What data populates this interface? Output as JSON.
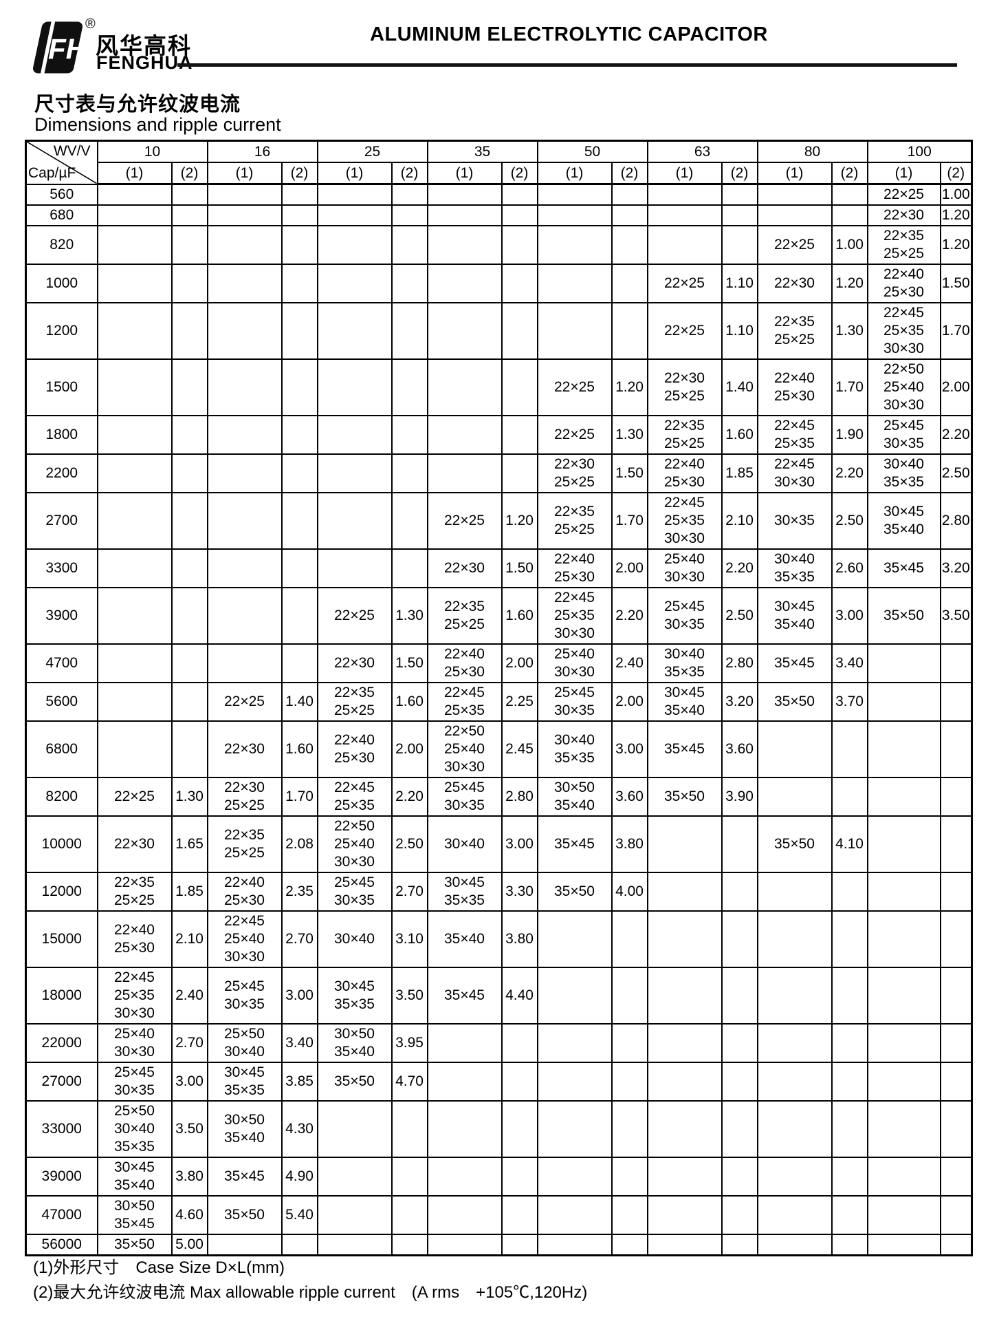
{
  "page": {
    "brand": {
      "logo_cn": "风华高科",
      "logo_en": "FENGHUA",
      "registered_mark": "®"
    },
    "doc_title": "ALUMINUM ELECTROLYTIC CAPACITOR",
    "section": {
      "title_cn": "尺寸表与允许纹波电流",
      "title_en": "Dimensions and ripple current"
    }
  },
  "table": {
    "corner": {
      "top": "WV/V",
      "bottom": "Cap/µF"
    },
    "voltages": [
      "10",
      "16",
      "25",
      "35",
      "50",
      "63",
      "80",
      "100"
    ],
    "sub_headers": [
      "(1)",
      "(2)"
    ],
    "rows": [
      {
        "cap": "560",
        "cells": {
          "100": [
            "22×25",
            "1.00"
          ]
        }
      },
      {
        "cap": "680",
        "cells": {
          "100": [
            "22×30",
            "1.20"
          ]
        }
      },
      {
        "cap": "820",
        "cells": {
          "80": [
            "22×25",
            "1.00"
          ],
          "100": [
            "22×35\n25×25",
            "1.20"
          ]
        }
      },
      {
        "cap": "1000",
        "cells": {
          "63": [
            "22×25",
            "1.10"
          ],
          "80": [
            "22×30",
            "1.20"
          ],
          "100": [
            "22×40\n25×30",
            "1.50"
          ]
        }
      },
      {
        "cap": "1200",
        "cells": {
          "63": [
            "22×25",
            "1.10"
          ],
          "80": [
            "22×35\n25×25",
            "1.30"
          ],
          "100": [
            "22×45\n25×35\n30×30",
            "1.70"
          ]
        }
      },
      {
        "cap": "1500",
        "cells": {
          "50": [
            "22×25",
            "1.20"
          ],
          "63": [
            "22×30\n25×25",
            "1.40"
          ],
          "80": [
            "22×40\n25×30",
            "1.70"
          ],
          "100": [
            "22×50\n25×40\n30×30",
            "2.00"
          ]
        }
      },
      {
        "cap": "1800",
        "cells": {
          "50": [
            "22×25",
            "1.30"
          ],
          "63": [
            "22×35\n25×25",
            "1.60"
          ],
          "80": [
            "22×45\n25×35",
            "1.90"
          ],
          "100": [
            "25×45\n30×35",
            "2.20"
          ]
        }
      },
      {
        "cap": "2200",
        "cells": {
          "50": [
            "22×30\n25×25",
            "1.50"
          ],
          "63": [
            "22×40\n25×30",
            "1.85"
          ],
          "80": [
            "22×45\n30×30",
            "2.20"
          ],
          "100": [
            "30×40\n35×35",
            "2.50"
          ]
        }
      },
      {
        "cap": "2700",
        "cells": {
          "35": [
            "22×25",
            "1.20"
          ],
          "50": [
            "22×35\n25×25",
            "1.70"
          ],
          "63": [
            "22×45\n25×35\n30×30",
            "2.10"
          ],
          "80": [
            "30×35",
            "2.50"
          ],
          "100": [
            "30×45\n35×40",
            "2.80"
          ]
        }
      },
      {
        "cap": "3300",
        "cells": {
          "35": [
            "22×30",
            "1.50"
          ],
          "50": [
            "22×40\n25×30",
            "2.00"
          ],
          "63": [
            "25×40\n30×30",
            "2.20"
          ],
          "80": [
            "30×40\n35×35",
            "2.60"
          ],
          "100": [
            "35×45",
            "3.20"
          ]
        }
      },
      {
        "cap": "3900",
        "cells": {
          "25": [
            "22×25",
            "1.30"
          ],
          "35": [
            "22×35\n25×25",
            "1.60"
          ],
          "50": [
            "22×45\n25×35\n30×30",
            "2.20"
          ],
          "63": [
            "25×45\n30×35",
            "2.50"
          ],
          "80": [
            "30×45\n35×40",
            "3.00"
          ],
          "100": [
            "35×50",
            "3.50"
          ]
        }
      },
      {
        "cap": "4700",
        "cells": {
          "25": [
            "22×30",
            "1.50"
          ],
          "35": [
            "22×40\n25×30",
            "2.00"
          ],
          "50": [
            "25×40\n30×30",
            "2.40"
          ],
          "63": [
            "30×40\n35×35",
            "2.80"
          ],
          "80": [
            "35×45",
            "3.40"
          ]
        }
      },
      {
        "cap": "5600",
        "cells": {
          "16": [
            "22×25",
            "1.40"
          ],
          "25": [
            "22×35\n25×25",
            "1.60"
          ],
          "35": [
            "22×45\n25×35",
            "2.25"
          ],
          "50": [
            "25×45\n30×35",
            "2.00"
          ],
          "63": [
            "30×45\n35×40",
            "3.20"
          ],
          "80": [
            "35×50",
            "3.70"
          ]
        }
      },
      {
        "cap": "6800",
        "cells": {
          "16": [
            "22×30",
            "1.60"
          ],
          "25": [
            "22×40\n25×30",
            "2.00"
          ],
          "35": [
            "22×50\n25×40\n30×30",
            "2.45"
          ],
          "50": [
            "30×40\n35×35",
            "3.00"
          ],
          "63": [
            "35×45",
            "3.60"
          ]
        }
      },
      {
        "cap": "8200",
        "cells": {
          "10": [
            "22×25",
            "1.30"
          ],
          "16": [
            "22×30\n25×25",
            "1.70"
          ],
          "25": [
            "22×45\n25×35",
            "2.20"
          ],
          "35": [
            "25×45\n30×35",
            "2.80"
          ],
          "50": [
            "30×50\n35×40",
            "3.60"
          ],
          "63": [
            "35×50",
            "3.90"
          ]
        }
      },
      {
        "cap": "10000",
        "cells": {
          "10": [
            "22×30",
            "1.65"
          ],
          "16": [
            "22×35\n25×25",
            "2.08"
          ],
          "25": [
            "22×50\n25×40\n30×30",
            "2.50"
          ],
          "35": [
            "30×40",
            "3.00"
          ],
          "50": [
            "35×45",
            "3.80"
          ],
          "80": [
            "35×50",
            "4.10"
          ]
        }
      },
      {
        "cap": "12000",
        "cells": {
          "10": [
            "22×35\n25×25",
            "1.85"
          ],
          "16": [
            "22×40\n25×30",
            "2.35"
          ],
          "25": [
            "25×45\n30×35",
            "2.70"
          ],
          "35": [
            "30×45\n35×35",
            "3.30"
          ],
          "50": [
            "35×50",
            "4.00"
          ]
        }
      },
      {
        "cap": "15000",
        "cells": {
          "10": [
            "22×40\n25×30",
            "2.10"
          ],
          "16": [
            "22×45\n25×40\n30×30",
            "2.70"
          ],
          "25": [
            "30×40",
            "3.10"
          ],
          "35": [
            "35×40",
            "3.80"
          ]
        }
      },
      {
        "cap": "18000",
        "cells": {
          "10": [
            "22×45\n25×35\n30×30",
            "2.40"
          ],
          "16": [
            "25×45\n30×35",
            "3.00"
          ],
          "25": [
            "30×45\n35×35",
            "3.50"
          ],
          "35": [
            "35×45",
            "4.40"
          ]
        }
      },
      {
        "cap": "22000",
        "cells": {
          "10": [
            "25×40\n30×30",
            "2.70"
          ],
          "16": [
            "25×50\n30×40",
            "3.40"
          ],
          "25": [
            "30×50\n35×40",
            "3.95"
          ]
        }
      },
      {
        "cap": "27000",
        "cells": {
          "10": [
            "25×45\n30×35",
            "3.00"
          ],
          "16": [
            "30×45\n35×35",
            "3.85"
          ],
          "25": [
            "35×50",
            "4.70"
          ]
        }
      },
      {
        "cap": "33000",
        "cells": {
          "10": [
            "25×50\n30×40\n35×35",
            "3.50"
          ],
          "16": [
            "30×50\n35×40",
            "4.30"
          ]
        }
      },
      {
        "cap": "39000",
        "cells": {
          "10": [
            "30×45\n35×40",
            "3.80"
          ],
          "16": [
            "35×45",
            "4.90"
          ]
        }
      },
      {
        "cap": "47000",
        "cells": {
          "10": [
            "30×50\n35×45",
            "4.60"
          ],
          "16": [
            "35×50",
            "5.40"
          ]
        }
      },
      {
        "cap": "56000",
        "cells": {
          "10": [
            "35×50",
            "5.00"
          ]
        }
      }
    ]
  },
  "footnotes": [
    "(1)外形尺寸　Case Size D×L(mm)",
    "(2)最大允许纹波电流 Max allowable ripple current　(A rms　+105℃,120Hz)"
  ]
}
